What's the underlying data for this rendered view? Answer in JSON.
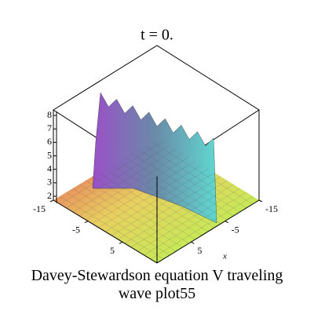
{
  "chart_data": {
    "type": "surface",
    "title": "t = 0.",
    "zlim": [
      1.5,
      8.3
    ],
    "zticks": [
      2,
      3,
      4,
      5,
      6,
      7,
      8
    ],
    "ylim": [
      -15,
      15
    ],
    "yticks": [
      -15,
      -5,
      5
    ],
    "xlim": [
      -15,
      15
    ],
    "xticks": [
      -15,
      -5,
      5
    ],
    "xlabel": "x",
    "caption": "Davey-Stewardson equation V traveling wave plot55"
  }
}
